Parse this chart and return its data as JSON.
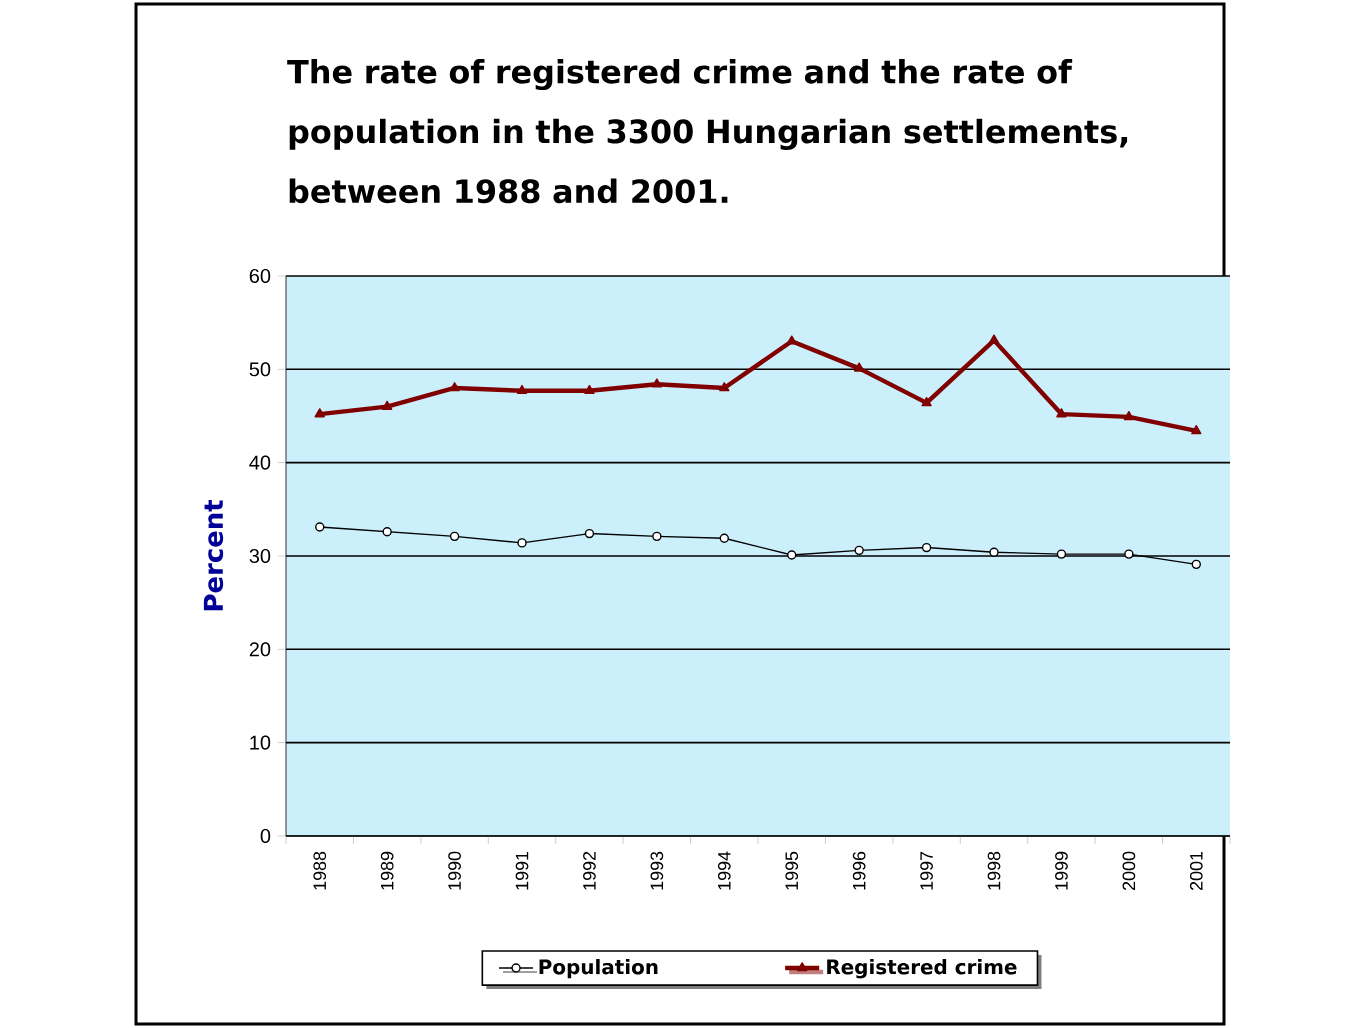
{
  "chart_data": {
    "type": "line",
    "title": "The rate of registered crime and the rate of population in the 3300 Hungarian settlements, between 1988 and 2001.",
    "ylabel": "Percent",
    "categories": [
      "1988",
      "1989",
      "1990",
      "1991",
      "1992",
      "1993",
      "1994",
      "1995",
      "1996",
      "1997",
      "1998",
      "1999",
      "2000",
      "2001"
    ],
    "series": [
      {
        "name": "Population",
        "color": "#000000",
        "marker": "circle",
        "values": [
          33.1,
          32.6,
          32.1,
          31.4,
          32.4,
          32.1,
          31.9,
          30.1,
          30.6,
          30.9,
          30.4,
          30.2,
          30.2,
          29.1
        ]
      },
      {
        "name": "Registered crime",
        "color": "#800000",
        "marker": "triangle",
        "values": [
          45.2,
          46.0,
          48.0,
          47.7,
          47.7,
          48.4,
          48.0,
          53.0,
          50.1,
          46.4,
          53.1,
          45.2,
          44.9,
          43.4
        ]
      }
    ],
    "ylim": [
      0,
      60
    ],
    "yticks": [
      0,
      10,
      20,
      30,
      40,
      50,
      60
    ],
    "grid": "y",
    "legend": "bottom"
  }
}
